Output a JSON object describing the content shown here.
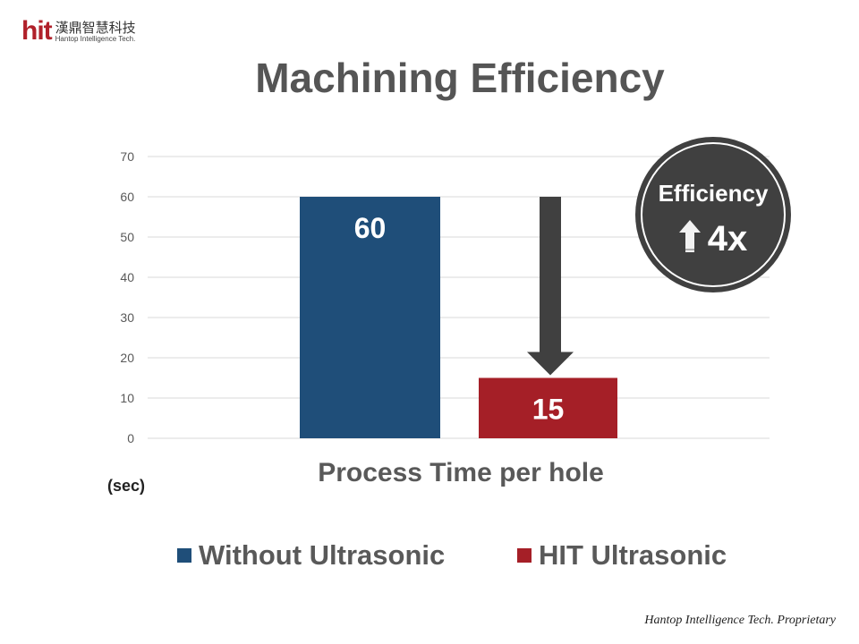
{
  "logo": {
    "mark": "hit",
    "chinese": "漢鼎智慧科技",
    "english": "Hantop Intelligence Tech."
  },
  "title": "Machining Efficiency",
  "badge": {
    "label": "Efficiency",
    "value": "4x",
    "icon": "up-arrow-icon"
  },
  "footer": "Hantop Intelligence Tech. Proprietary",
  "colors": {
    "without": "#1f4e79",
    "hit": "#a51f27",
    "arrow": "#404040"
  },
  "chart_data": {
    "type": "bar",
    "title": "Machining Efficiency",
    "xlabel": "Process Time per hole",
    "ylabel": "(sec)",
    "ylim": [
      0,
      70
    ],
    "yticks": [
      0,
      10,
      20,
      30,
      40,
      50,
      60,
      70
    ],
    "grid": true,
    "legend_position": "bottom",
    "categories": [
      "Process Time per hole"
    ],
    "series": [
      {
        "name": "Without Ultrasonic",
        "values": [
          60
        ],
        "label": "60"
      },
      {
        "name": "HIT Ultrasonic",
        "values": [
          15
        ],
        "label": "15"
      }
    ]
  }
}
